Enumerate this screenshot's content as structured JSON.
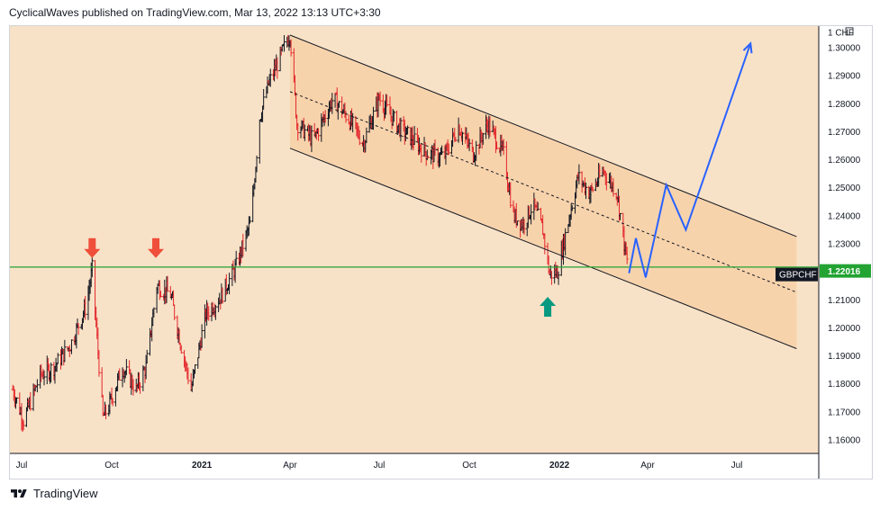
{
  "header": {
    "publisher_line": "CyclicalWaves published on TradingView.com, Mar 13, 2022 13:13 UTC+3:30"
  },
  "footer": {
    "brand": "TradingView"
  },
  "colors": {
    "background": "#f8e2c7",
    "channel_fill": "#f6d2a8",
    "bar_up": "#131722",
    "bar_down": "#e3262b",
    "support_line": "#22a332",
    "projection": "#2962ff",
    "arrow_down": "#ef4f3b",
    "arrow_up": "#089981"
  },
  "chart_data": {
    "type": "ohlc",
    "symbol": "GBPCHF",
    "currency": "CHF",
    "last_value": 1.22016,
    "last_value_label": "1.22016",
    "y_ticks": [
      "1.30000",
      "1.29000",
      "1.28000",
      "1.27000",
      "1.26000",
      "1.25000",
      "1.24000",
      "1.23000",
      "1.22000",
      "1.21000",
      "1.20000",
      "1.19000",
      "1.18000",
      "1.17000",
      "1.16000"
    ],
    "ylim": [
      1.155,
      1.3055
    ],
    "x_ticks": [
      {
        "label": "Jul",
        "date": "2020-07-01",
        "year": false
      },
      {
        "label": "Oct",
        "date": "2020-10-01",
        "year": false
      },
      {
        "label": "2021",
        "date": "2021-01-01",
        "year": true
      },
      {
        "label": "Apr",
        "date": "2021-04-01",
        "year": false
      },
      {
        "label": "Jul",
        "date": "2021-07-01",
        "year": false
      },
      {
        "label": "Oct",
        "date": "2021-10-01",
        "year": false
      },
      {
        "label": "2022",
        "date": "2022-01-01",
        "year": true
      },
      {
        "label": "Apr",
        "date": "2022-04-01",
        "year": false
      },
      {
        "label": "Jul",
        "date": "2022-07-01",
        "year": false
      }
    ],
    "price_path": [
      [
        "2020-06-22",
        1.178
      ],
      [
        "2020-07-03",
        1.167
      ],
      [
        "2020-07-20",
        1.183
      ],
      [
        "2020-08-03",
        1.186
      ],
      [
        "2020-08-20",
        1.194
      ],
      [
        "2020-09-05",
        1.208
      ],
      [
        "2020-09-11",
        1.221
      ],
      [
        "2020-09-16",
        1.196
      ],
      [
        "2020-09-22",
        1.168
      ],
      [
        "2020-09-28",
        1.172
      ],
      [
        "2020-10-12",
        1.186
      ],
      [
        "2020-10-26",
        1.178
      ],
      [
        "2020-11-05",
        1.186
      ],
      [
        "2020-11-16",
        1.215
      ],
      [
        "2020-11-30",
        1.212
      ],
      [
        "2020-12-10",
        1.195
      ],
      [
        "2020-12-21",
        1.178
      ],
      [
        "2021-01-05",
        1.205
      ],
      [
        "2021-01-20",
        1.211
      ],
      [
        "2021-02-05",
        1.222
      ],
      [
        "2021-02-20",
        1.238
      ],
      [
        "2021-03-01",
        1.275
      ],
      [
        "2021-03-10",
        1.287
      ],
      [
        "2021-03-20",
        1.295
      ],
      [
        "2021-04-01",
        1.305
      ],
      [
        "2021-04-08",
        1.273
      ],
      [
        "2021-04-25",
        1.267
      ],
      [
        "2021-05-15",
        1.282
      ],
      [
        "2021-06-01",
        1.274
      ],
      [
        "2021-06-15",
        1.266
      ],
      [
        "2021-07-01",
        1.282
      ],
      [
        "2021-07-20",
        1.272
      ],
      [
        "2021-08-05",
        1.267
      ],
      [
        "2021-08-20",
        1.262
      ],
      [
        "2021-09-05",
        1.261
      ],
      [
        "2021-09-20",
        1.272
      ],
      [
        "2021-10-05",
        1.262
      ],
      [
        "2021-10-20",
        1.273
      ],
      [
        "2021-11-05",
        1.262
      ],
      [
        "2021-11-15",
        1.24
      ],
      [
        "2021-11-25",
        1.237
      ],
      [
        "2021-12-05",
        1.244
      ],
      [
        "2021-12-15",
        1.235
      ],
      [
        "2021-12-22",
        1.219
      ],
      [
        "2021-12-30",
        1.22
      ],
      [
        "2022-01-10",
        1.238
      ],
      [
        "2022-01-20",
        1.254
      ],
      [
        "2022-02-01",
        1.248
      ],
      [
        "2022-02-15",
        1.256
      ],
      [
        "2022-03-01",
        1.248
      ],
      [
        "2022-03-08",
        1.23
      ],
      [
        "2022-03-13",
        1.219
      ]
    ],
    "channel": {
      "upper": [
        [
          "2021-04-01",
          1.3045
        ],
        [
          "2022-08-31",
          1.2326
        ]
      ],
      "middle": [
        [
          "2021-04-01",
          1.2843
        ],
        [
          "2022-08-31",
          1.2127
        ]
      ],
      "lower": [
        [
          "2021-04-01",
          1.2641
        ],
        [
          "2022-08-31",
          1.1926
        ]
      ],
      "fill_end_date": "2022-08-31"
    },
    "support_level": 1.2217,
    "projection": [
      [
        "2022-03-13",
        1.2195
      ],
      [
        "2022-03-20",
        1.232
      ],
      [
        "2022-03-30",
        1.218
      ],
      [
        "2022-04-20",
        1.251
      ],
      [
        "2022-05-10",
        1.235
      ],
      [
        "2022-07-15",
        1.3015
      ]
    ],
    "down_arrows": [
      {
        "date": "2020-09-11",
        "price": 1.2243
      },
      {
        "date": "2020-11-15",
        "price": 1.2243
      }
    ],
    "up_arrows": [
      {
        "date": "2021-12-20",
        "price": 1.2117
      }
    ]
  }
}
